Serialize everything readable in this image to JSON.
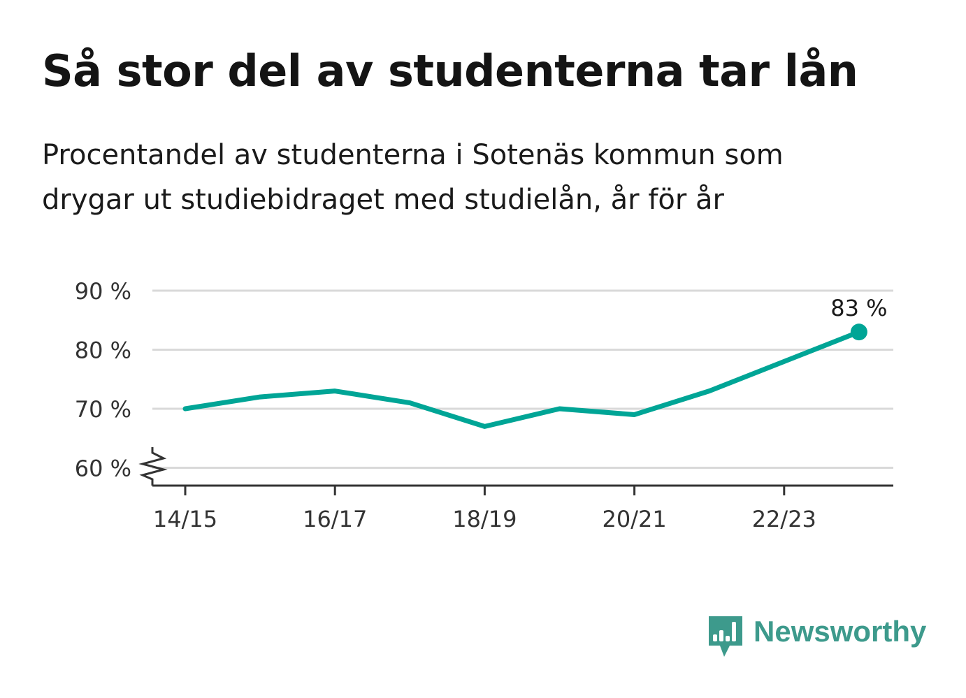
{
  "header": {
    "title": "Så stor del av studenterna tar lån",
    "subtitle": "Procentandel av studenterna i Sotenäs kommun som drygar ut studiebidraget med studielån, år för år"
  },
  "chart_data": {
    "type": "line",
    "x": [
      "14/15",
      "15/16",
      "16/17",
      "17/18",
      "18/19",
      "19/20",
      "20/21",
      "21/22",
      "22/23",
      "23/24"
    ],
    "xticks": [
      "14/15",
      "16/17",
      "18/19",
      "20/21",
      "22/23"
    ],
    "values": [
      70,
      72,
      73,
      71,
      67,
      70,
      69,
      73,
      78,
      83
    ],
    "yticks": [
      60,
      70,
      80,
      90
    ],
    "ytick_labels": [
      "60 %",
      "70 %",
      "80 %",
      "90 %"
    ],
    "ylim": [
      57,
      90
    ],
    "y_axis_break": true,
    "grid": true,
    "end_label": "83 %",
    "line_color": "#00a596"
  },
  "brand": {
    "name": "Newsworthy",
    "color": "#3d9a8c",
    "icon": "bar-chart-speech-bubble-icon"
  }
}
